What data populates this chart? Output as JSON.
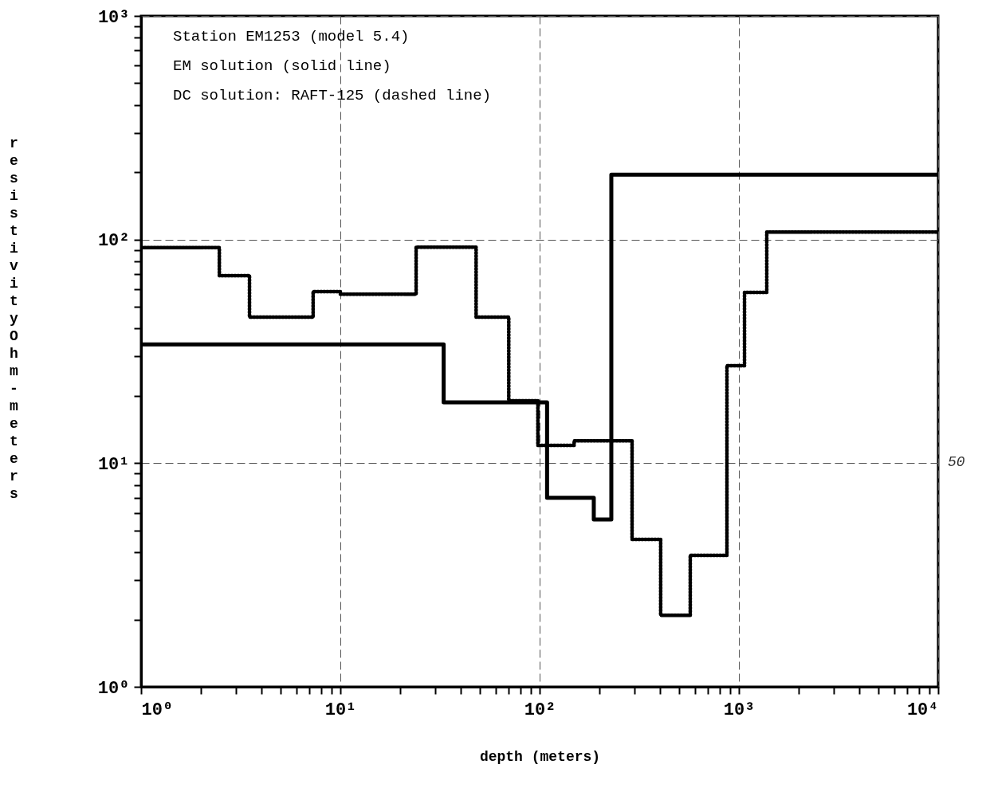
{
  "chart_data": {
    "type": "step",
    "xlabel": "depth (meters)",
    "ylabel": "resistivity Ohm-meters",
    "annotations": [
      "Station EM1253 (model 5.4)",
      "EM solution (solid line)",
      "DC solution: RAFT-125 (dashed line)",
      "50"
    ],
    "series": [
      {
        "color": "#000000",
        "line_style": "solid",
        "x": [
          1,
          33,
          109,
          187,
          229,
          10000
        ],
        "values": [
          34,
          18.7,
          7,
          5.6,
          195,
          195
        ]
      },
      {
        "color": "#000000",
        "line_style": "dotted",
        "x": [
          1,
          2.47,
          3.5,
          7.3,
          10,
          24,
          48,
          70,
          98,
          149,
          291,
          405,
          570,
          871,
          1067,
          1380,
          10000
        ],
        "values": [
          92,
          69,
          45,
          58.5,
          57,
          92.5,
          45,
          19,
          12,
          12.6,
          4.56,
          2.09,
          3.87,
          27.3,
          58,
          108,
          108
        ]
      }
    ],
    "log": "xy",
    "grid": true,
    "xlim": [
      1,
      10000
    ],
    "ylim": [
      1,
      1000
    ],
    "xticks": [
      {
        "value": 1,
        "label": "10⁰"
      },
      {
        "value": 2,
        "label": null
      },
      {
        "value": 3,
        "label": null
      },
      {
        "value": 4,
        "label": null
      },
      {
        "value": 5,
        "label": null
      },
      {
        "value": 6,
        "label": null
      },
      {
        "value": 7,
        "label": null
      },
      {
        "value": 8,
        "label": null
      },
      {
        "value": 9,
        "label": null
      },
      {
        "value": 10,
        "label": "10¹"
      },
      {
        "value": 20,
        "label": null
      },
      {
        "value": 30,
        "label": null
      },
      {
        "value": 40,
        "label": null
      },
      {
        "value": 50,
        "label": null
      },
      {
        "value": 60,
        "label": null
      },
      {
        "value": 70,
        "label": null
      },
      {
        "value": 80,
        "label": null
      },
      {
        "value": 90,
        "label": null
      },
      {
        "value": 100,
        "label": "10²"
      },
      {
        "value": 200,
        "label": null
      },
      {
        "value": 300,
        "label": null
      },
      {
        "value": 400,
        "label": null
      },
      {
        "value": 500,
        "label": null
      },
      {
        "value": 600,
        "label": null
      },
      {
        "value": 700,
        "label": null
      },
      {
        "value": 800,
        "label": null
      },
      {
        "value": 900,
        "label": null
      },
      {
        "value": 1000,
        "label": "10³"
      },
      {
        "value": 2000,
        "label": null
      },
      {
        "value": 3000,
        "label": null
      },
      {
        "value": 4000,
        "label": null
      },
      {
        "value": 5000,
        "label": null
      },
      {
        "value": 6000,
        "label": null
      },
      {
        "value": 7000,
        "label": null
      },
      {
        "value": 8000,
        "label": null
      },
      {
        "value": 9000,
        "label": null
      },
      {
        "value": 10000,
        "label": "10⁴"
      }
    ],
    "yticks": [
      {
        "value": 1,
        "label": "10⁰"
      },
      {
        "value": 2,
        "label": null
      },
      {
        "value": 3,
        "label": null
      },
      {
        "value": 4,
        "label": null
      },
      {
        "value": 5,
        "label": null
      },
      {
        "value": 6,
        "label": null
      },
      {
        "value": 7,
        "label": null
      },
      {
        "value": 8,
        "label": null
      },
      {
        "value": 9,
        "label": null
      },
      {
        "value": 10,
        "label": "10¹"
      },
      {
        "value": 20,
        "label": null
      },
      {
        "value": 30,
        "label": null
      },
      {
        "value": 40,
        "label": null
      },
      {
        "value": 50,
        "label": null
      },
      {
        "value": 60,
        "label": null
      },
      {
        "value": 70,
        "label": null
      },
      {
        "value": 80,
        "label": null
      },
      {
        "value": 90,
        "label": null
      },
      {
        "value": 100,
        "label": "10²"
      },
      {
        "value": 200,
        "label": null
      },
      {
        "value": 300,
        "label": null
      },
      {
        "value": 400,
        "label": null
      },
      {
        "value": 500,
        "label": null
      },
      {
        "value": 600,
        "label": null
      },
      {
        "value": 700,
        "label": null
      },
      {
        "value": 800,
        "label": null
      },
      {
        "value": 900,
        "label": null
      },
      {
        "value": 1000,
        "label": "10³"
      }
    ]
  }
}
